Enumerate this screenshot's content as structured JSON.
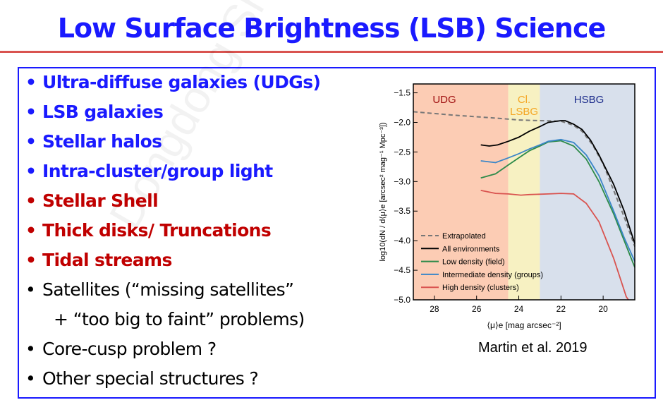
{
  "title": "Low Surface Brightness (LSB) Science",
  "watermark": "Dongdong Shi",
  "bullets": [
    {
      "text": "Ultra-diffuse galaxies (UDGs)",
      "color": "blue"
    },
    {
      "text": "LSB galaxies",
      "color": "blue"
    },
    {
      "text": "Stellar halos",
      "color": "blue"
    },
    {
      "text": "Intra-cluster/group light",
      "color": "blue"
    },
    {
      "text": "Stellar Shell",
      "color": "red"
    },
    {
      "text": "Thick disks/ Truncations",
      "color": "red"
    },
    {
      "text": "Tidal streams",
      "color": "red"
    },
    {
      "text": "Satellites (“missing satellites”",
      "color": "black"
    },
    {
      "text": "+ “too big to faint” problems)",
      "color": "black",
      "continuation": true
    },
    {
      "text": "Core-cusp problem ?",
      "color": "black"
    },
    {
      "text": "Other special structures ?",
      "color": "black"
    }
  ],
  "citation": "Martin et al. 2019",
  "chart_data": {
    "type": "line",
    "xlabel": "⟨μ⟩e [mag arcsec⁻²]",
    "ylabel": "log10(dN / d⟨μ⟩e [arcsec² mag⁻¹ Mpc⁻³])",
    "xlim": [
      29,
      18.5
    ],
    "ylim": [
      -5.0,
      -1.35
    ],
    "xticks": [
      28,
      26,
      24,
      22,
      20
    ],
    "yticks": [
      -1.5,
      -2.0,
      -2.5,
      -3.0,
      -3.5,
      -4.0,
      -4.5,
      -5.0
    ],
    "regions": [
      {
        "label": "UDG",
        "from": 29,
        "to": 24.5,
        "fill": "#fcccb4",
        "text_color": "#a01010"
      },
      {
        "label": "Cl. LSBG",
        "from": 24.5,
        "to": 23,
        "fill": "#f7f1c2",
        "text_color": "#f5a623"
      },
      {
        "label": "HSBG",
        "from": 23,
        "to": 18.5,
        "fill": "#d8e0ec",
        "text_color": "#1a2a8a"
      }
    ],
    "legend_position": "bottom-left",
    "series": [
      {
        "name": "Extrapolated",
        "color": "#777777",
        "dashed": true,
        "x": [
          29,
          27,
          25,
          24,
          23,
          22,
          21.4,
          21,
          20.5,
          20,
          19.5,
          19,
          18.5
        ],
        "y": [
          -1.82,
          -1.88,
          -1.93,
          -1.96,
          -1.97,
          -1.98,
          -2.05,
          -2.15,
          -2.38,
          -2.7,
          -3.15,
          -3.6,
          -4.1
        ]
      },
      {
        "name": "All environments",
        "color": "#000000",
        "x": [
          25.8,
          25.4,
          25.0,
          24.5,
          24.0,
          23.5,
          23.0,
          22.6,
          22.0,
          21.8,
          21.4,
          21.0,
          20.6,
          20.2,
          19.5,
          19.0,
          18.5
        ],
        "y": [
          -2.38,
          -2.4,
          -2.38,
          -2.32,
          -2.25,
          -2.15,
          -2.07,
          -2.0,
          -1.97,
          -1.97,
          -2.03,
          -2.12,
          -2.3,
          -2.55,
          -3.05,
          -3.5,
          -4.05
        ]
      },
      {
        "name": "Low density (field)",
        "color": "#2e8b4a",
        "x": [
          25.8,
          25.1,
          24.5,
          24,
          23.5,
          23,
          22.6,
          22,
          21.4,
          20.8,
          20.2,
          19.5,
          19,
          18.5
        ],
        "y": [
          -2.94,
          -2.87,
          -2.72,
          -2.6,
          -2.48,
          -2.4,
          -2.33,
          -2.31,
          -2.4,
          -2.62,
          -3.0,
          -3.55,
          -4.0,
          -4.45
        ]
      },
      {
        "name": "Intermediate density (groups)",
        "color": "#3a86c8",
        "x": [
          25.8,
          25.1,
          24.5,
          24,
          23.5,
          23,
          22.6,
          22,
          21.4,
          20.8,
          20.2,
          19.5,
          19,
          18.5
        ],
        "y": [
          -2.65,
          -2.68,
          -2.6,
          -2.53,
          -2.45,
          -2.38,
          -2.32,
          -2.29,
          -2.34,
          -2.55,
          -2.9,
          -3.5,
          -3.95,
          -4.35
        ]
      },
      {
        "name": "High density (clusters)",
        "color": "#d9534f",
        "x": [
          25.8,
          25.1,
          24.5,
          23.9,
          23.5,
          22.6,
          22,
          21.4,
          20.8,
          20.2,
          19.5,
          18.9,
          18.8
        ],
        "y": [
          -3.15,
          -3.2,
          -3.21,
          -3.23,
          -3.22,
          -3.21,
          -3.2,
          -3.21,
          -3.37,
          -3.68,
          -4.3,
          -4.95,
          -5.0
        ]
      }
    ]
  }
}
